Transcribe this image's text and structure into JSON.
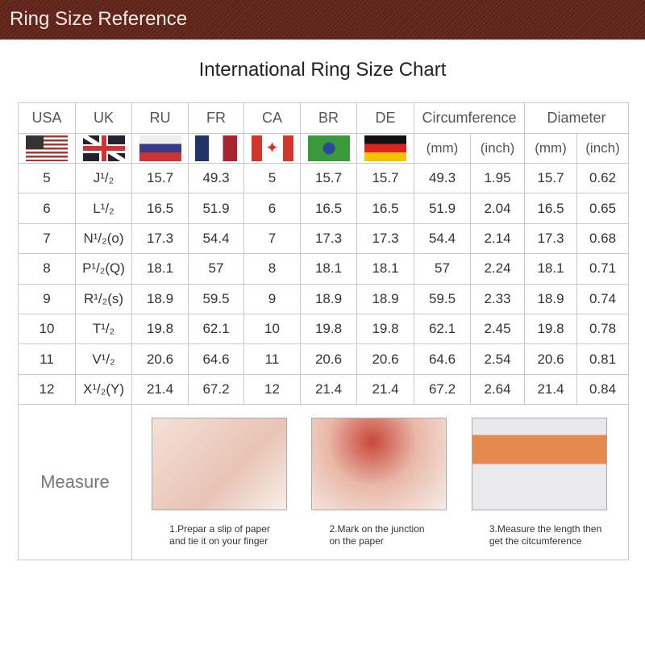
{
  "banner": "Ring Size Reference",
  "title": "International Ring Size Chart",
  "headers": [
    "USA",
    "UK",
    "RU",
    "FR",
    "CA",
    "BR",
    "DE",
    "Circumference",
    "Diameter"
  ],
  "units": [
    "(mm)",
    "(inch)",
    "(mm)",
    "(inch)"
  ],
  "flags": [
    "us-flag",
    "uk-flag",
    "russia-flag",
    "france-flag",
    "canada-flag",
    "brazil-flag",
    "germany-flag"
  ],
  "rows": [
    [
      "5",
      "J¹/₂",
      "15.7",
      "49.3",
      "5",
      "15.7",
      "15.7",
      "49.3",
      "1.95",
      "15.7",
      "0.62"
    ],
    [
      "6",
      "L¹/₂",
      "16.5",
      "51.9",
      "6",
      "16.5",
      "16.5",
      "51.9",
      "2.04",
      "16.5",
      "0.65"
    ],
    [
      "7",
      "N¹/₂(o)",
      "17.3",
      "54.4",
      "7",
      "17.3",
      "17.3",
      "54.4",
      "2.14",
      "17.3",
      "0.68"
    ],
    [
      "8",
      "P¹/₂(Q)",
      "18.1",
      "57",
      "8",
      "18.1",
      "18.1",
      "57",
      "2.24",
      "18.1",
      "0.71"
    ],
    [
      "9",
      "R¹/₂(s)",
      "18.9",
      "59.5",
      "9",
      "18.9",
      "18.9",
      "59.5",
      "2.33",
      "18.9",
      "0.74"
    ],
    [
      "10",
      "T¹/₂",
      "19.8",
      "62.1",
      "10",
      "19.8",
      "19.8",
      "62.1",
      "2.45",
      "19.8",
      "0.78"
    ],
    [
      "11",
      "V¹/₂",
      "20.6",
      "64.6",
      "11",
      "20.6",
      "20.6",
      "64.6",
      "2.54",
      "20.6",
      "0.81"
    ],
    [
      "12",
      "X¹/₂(Y)",
      "21.4",
      "67.2",
      "12",
      "21.4",
      "21.4",
      "67.2",
      "2.64",
      "21.4",
      "0.84"
    ]
  ],
  "measure": {
    "label": "Measure",
    "steps": [
      {
        "line1": "1.Prepar a slip of paper",
        "line2": "and tie it on your finger"
      },
      {
        "line1": "2.Mark on the junction",
        "line2": "on the paper"
      },
      {
        "line1": "3.Measure the length then",
        "line2": "get the citcumference"
      }
    ]
  },
  "colors": {
    "banner": "#5e251c"
  }
}
